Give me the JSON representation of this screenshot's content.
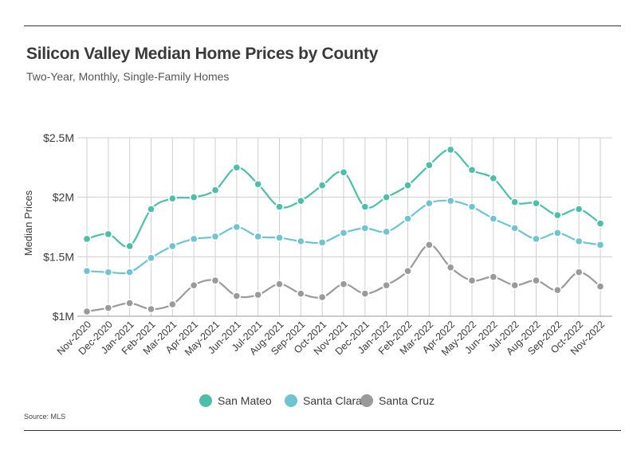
{
  "chart_data": {
    "type": "line",
    "title": "Silicon Valley Median Home Prices by County",
    "subtitle": "Two-Year, Monthly, Single-Family Homes",
    "ylabel": "Median Prices",
    "xlabel": "",
    "source": "Source:  MLS",
    "ylim": [
      1.0,
      2.5
    ],
    "yticks": [
      {
        "value": 1.0,
        "label": "$1M"
      },
      {
        "value": 1.5,
        "label": "$1.5M"
      },
      {
        "value": 2.0,
        "label": "$2M"
      },
      {
        "value": 2.5,
        "label": "$2.5M"
      }
    ],
    "categories": [
      "Nov-2020",
      "Dec-2020",
      "Jan-2021",
      "Feb-2021",
      "Mar-2021",
      "Apr-2021",
      "May-2021",
      "Jun-2021",
      "Jul-2021",
      "Aug-2021",
      "Sep-2021",
      "Oct-2021",
      "Nov-2021",
      "Dec-2021",
      "Jan-2022",
      "Feb-2022",
      "Mar-2022",
      "Apr-2022",
      "May-2022",
      "Jun-2022",
      "Jul-2022",
      "Aug-2022",
      "Sep-2022",
      "Oct-2022",
      "Nov-2022"
    ],
    "grid": true,
    "legend_position": "bottom",
    "series": [
      {
        "name": "San Mateo",
        "color": "#4dbfa8",
        "values": [
          1.65,
          1.69,
          1.59,
          1.9,
          1.99,
          2.0,
          2.06,
          2.25,
          2.11,
          1.92,
          1.97,
          2.1,
          2.21,
          1.92,
          2.0,
          2.1,
          2.27,
          2.4,
          2.23,
          2.16,
          1.96,
          1.95,
          1.85,
          1.9,
          1.78
        ]
      },
      {
        "name": "Santa Clara",
        "color": "#6ec5cf",
        "values": [
          1.38,
          1.37,
          1.37,
          1.49,
          1.59,
          1.65,
          1.67,
          1.75,
          1.67,
          1.66,
          1.63,
          1.62,
          1.7,
          1.74,
          1.71,
          1.82,
          1.95,
          1.97,
          1.92,
          1.82,
          1.74,
          1.65,
          1.7,
          1.63,
          1.6
        ]
      },
      {
        "name": "Santa Cruz",
        "color": "#9a9a9a",
        "values": [
          1.04,
          1.07,
          1.11,
          1.06,
          1.1,
          1.26,
          1.3,
          1.17,
          1.18,
          1.27,
          1.19,
          1.16,
          1.27,
          1.19,
          1.26,
          1.38,
          1.6,
          1.41,
          1.3,
          1.33,
          1.26,
          1.3,
          1.22,
          1.37,
          1.25
        ]
      }
    ]
  }
}
